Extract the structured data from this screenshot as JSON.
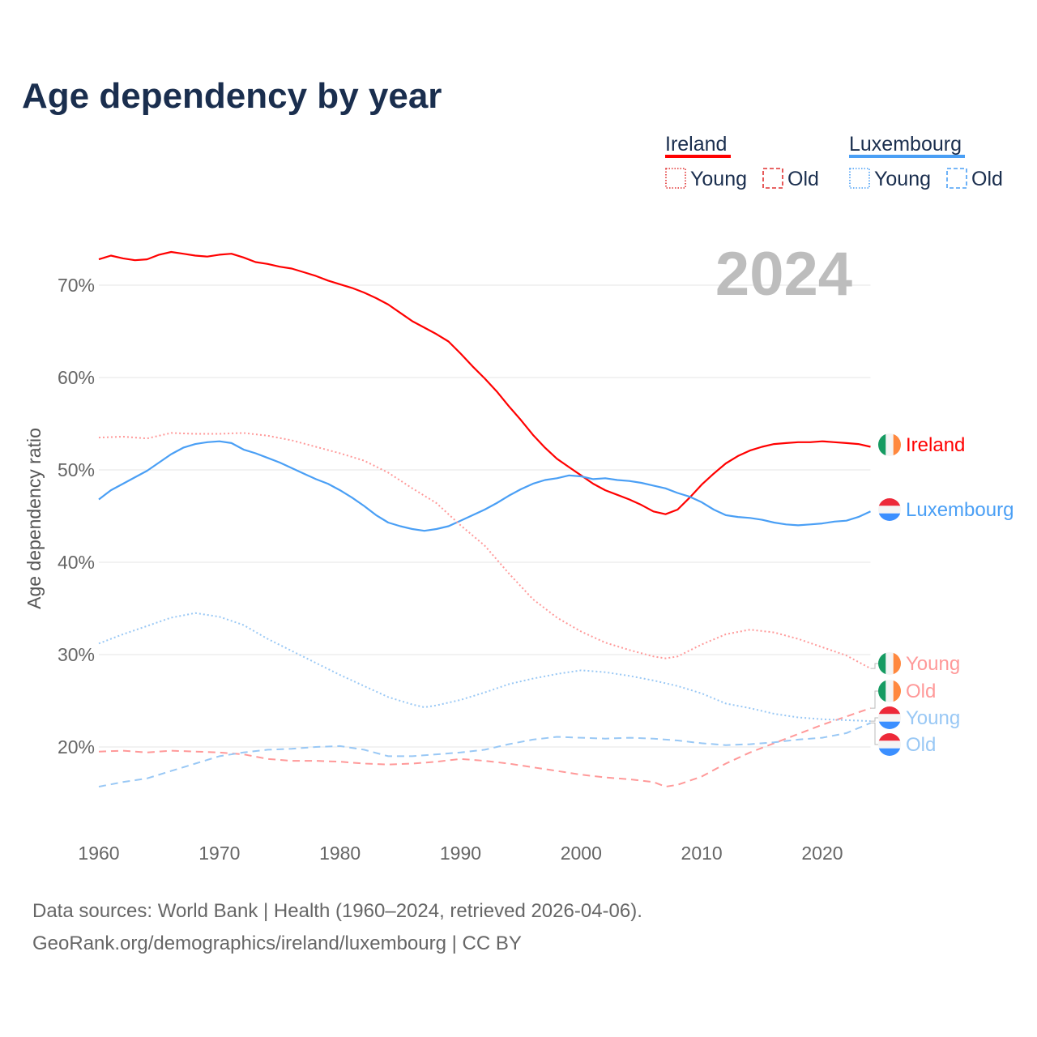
{
  "chart_data": {
    "type": "line",
    "title": "Age dependency by year",
    "ylabel": "Age dependency ratio",
    "xlabel": "",
    "xlim": [
      1960,
      2024
    ],
    "ylim": [
      12,
      76
    ],
    "grid": true,
    "current_year": "2024",
    "x_ticks": [
      "1960",
      "1970",
      "1980",
      "1990",
      "2000",
      "2010",
      "2020"
    ],
    "y_ticks": [
      {
        "value": 20,
        "label": "20%"
      },
      {
        "value": 30,
        "label": "30%"
      },
      {
        "value": 40,
        "label": "40%"
      },
      {
        "value": 50,
        "label": "50%"
      },
      {
        "value": 60,
        "label": "60%"
      },
      {
        "value": 70,
        "label": "70%"
      }
    ],
    "legend": {
      "placement": "top-right",
      "groups": [
        {
          "country": "Ireland",
          "color": "#ff0000",
          "items": [
            {
              "label": "Young",
              "style": "dotted",
              "color": "#e03030"
            },
            {
              "label": "Old",
              "style": "dashed",
              "color": "#e03030"
            }
          ]
        },
        {
          "country": "Luxembourg",
          "color": "#4a9ff5",
          "items": [
            {
              "label": "Young",
              "style": "dotted",
              "color": "#4a9ff5"
            },
            {
              "label": "Old",
              "style": "dashed",
              "color": "#4a9ff5"
            }
          ]
        }
      ]
    },
    "series": [
      {
        "name": "Ireland",
        "label": "Ireland",
        "style": "solid",
        "color": "#ff0000",
        "label_color": "#ff0000",
        "flag": "ireland",
        "x": [
          1960,
          1961,
          1962,
          1963,
          1964,
          1965,
          1966,
          1967,
          1968,
          1969,
          1970,
          1971,
          1972,
          1973,
          1974,
          1975,
          1976,
          1977,
          1978,
          1979,
          1980,
          1981,
          1982,
          1983,
          1984,
          1985,
          1986,
          1987,
          1988,
          1989,
          1990,
          1991,
          1992,
          1993,
          1994,
          1995,
          1996,
          1997,
          1998,
          1999,
          2000,
          2001,
          2002,
          2003,
          2004,
          2005,
          2006,
          2007,
          2008,
          2009,
          2010,
          2011,
          2012,
          2013,
          2014,
          2015,
          2016,
          2017,
          2018,
          2019,
          2020,
          2021,
          2022,
          2023,
          2024
        ],
        "values": [
          72.8,
          73.2,
          72.9,
          72.7,
          72.8,
          73.3,
          73.6,
          73.4,
          73.2,
          73.1,
          73.3,
          73.4,
          73.0,
          72.5,
          72.3,
          72.0,
          71.8,
          71.4,
          71.0,
          70.5,
          70.1,
          69.7,
          69.2,
          68.6,
          67.9,
          67.0,
          66.1,
          65.4,
          64.7,
          63.9,
          62.6,
          61.2,
          59.9,
          58.5,
          56.9,
          55.4,
          53.8,
          52.4,
          51.2,
          50.3,
          49.4,
          48.5,
          47.8,
          47.3,
          46.8,
          46.2,
          45.5,
          45.2,
          45.7,
          47.0,
          48.4,
          49.6,
          50.7,
          51.5,
          52.1,
          52.5,
          52.8,
          52.9,
          53.0,
          53.0,
          53.1,
          53.0,
          52.9,
          52.8,
          52.5
        ]
      },
      {
        "name": "Luxembourg",
        "label": "Luxembourg",
        "style": "solid",
        "color": "#4a9ff5",
        "label_color": "#4a9ff5",
        "flag": "luxembourg",
        "x": [
          1960,
          1961,
          1962,
          1963,
          1964,
          1965,
          1966,
          1967,
          1968,
          1969,
          1970,
          1971,
          1972,
          1973,
          1974,
          1975,
          1976,
          1977,
          1978,
          1979,
          1980,
          1981,
          1982,
          1983,
          1984,
          1985,
          1986,
          1987,
          1988,
          1989,
          1990,
          1991,
          1992,
          1993,
          1994,
          1995,
          1996,
          1997,
          1998,
          1999,
          2000,
          2001,
          2002,
          2003,
          2004,
          2005,
          2006,
          2007,
          2008,
          2009,
          2010,
          2011,
          2012,
          2013,
          2014,
          2015,
          2016,
          2017,
          2018,
          2019,
          2020,
          2021,
          2022,
          2023,
          2024
        ],
        "values": [
          46.8,
          47.8,
          48.5,
          49.2,
          49.9,
          50.8,
          51.7,
          52.4,
          52.8,
          53.0,
          53.1,
          52.9,
          52.2,
          51.8,
          51.3,
          50.8,
          50.2,
          49.6,
          49.0,
          48.5,
          47.8,
          47.0,
          46.1,
          45.1,
          44.3,
          43.9,
          43.6,
          43.4,
          43.6,
          43.9,
          44.5,
          45.1,
          45.7,
          46.4,
          47.2,
          47.9,
          48.5,
          48.9,
          49.1,
          49.4,
          49.3,
          49.0,
          49.1,
          48.9,
          48.8,
          48.6,
          48.3,
          48.0,
          47.5,
          47.1,
          46.5,
          45.7,
          45.1,
          44.9,
          44.8,
          44.6,
          44.3,
          44.1,
          44.0,
          44.1,
          44.2,
          44.4,
          44.5,
          44.9,
          45.5
        ]
      },
      {
        "name": "Ireland Young",
        "label": "Young",
        "style": "dotted",
        "color": "#ff9999",
        "label_color": "#ff9999",
        "flag": "ireland",
        "x": [
          1960,
          1962,
          1964,
          1966,
          1968,
          1970,
          1972,
          1974,
          1976,
          1978,
          1980,
          1982,
          1984,
          1986,
          1988,
          1990,
          1992,
          1994,
          1996,
          1998,
          2000,
          2002,
          2004,
          2006,
          2007,
          2008,
          2010,
          2012,
          2014,
          2016,
          2018,
          2020,
          2022,
          2024
        ],
        "values": [
          53.5,
          53.6,
          53.4,
          54.0,
          53.9,
          53.9,
          54.0,
          53.7,
          53.2,
          52.5,
          51.8,
          51.0,
          49.7,
          48.0,
          46.4,
          44.0,
          41.8,
          38.8,
          36.0,
          34.0,
          32.5,
          31.3,
          30.5,
          29.8,
          29.6,
          29.8,
          31.1,
          32.2,
          32.7,
          32.4,
          31.7,
          30.8,
          29.9,
          28.5
        ]
      },
      {
        "name": "Ireland Old",
        "label": "Old",
        "style": "dashed",
        "color": "#ff9999",
        "label_color": "#ff9999",
        "flag": "ireland",
        "x": [
          1960,
          1962,
          1964,
          1966,
          1968,
          1970,
          1972,
          1974,
          1976,
          1978,
          1980,
          1982,
          1984,
          1986,
          1988,
          1990,
          1992,
          1994,
          1996,
          1998,
          2000,
          2002,
          2004,
          2006,
          2007,
          2008,
          2010,
          2012,
          2014,
          2016,
          2018,
          2020,
          2022,
          2024
        ],
        "values": [
          19.5,
          19.6,
          19.4,
          19.6,
          19.5,
          19.4,
          19.2,
          18.7,
          18.5,
          18.5,
          18.4,
          18.2,
          18.1,
          18.2,
          18.4,
          18.7,
          18.5,
          18.2,
          17.8,
          17.4,
          17.0,
          16.7,
          16.5,
          16.2,
          15.7,
          15.9,
          16.8,
          18.2,
          19.4,
          20.4,
          21.4,
          22.4,
          23.3,
          24.2
        ]
      },
      {
        "name": "Luxembourg Young",
        "label": "Young",
        "style": "dotted",
        "color": "#99c8f5",
        "label_color": "#99c8f5",
        "flag": "luxembourg",
        "x": [
          1960,
          1962,
          1964,
          1966,
          1968,
          1970,
          1972,
          1974,
          1976,
          1978,
          1980,
          1982,
          1984,
          1986,
          1987,
          1988,
          1990,
          1992,
          1994,
          1996,
          1998,
          2000,
          2002,
          2004,
          2006,
          2008,
          2010,
          2012,
          2014,
          2016,
          2018,
          2020,
          2022,
          2024
        ],
        "values": [
          31.2,
          32.2,
          33.1,
          34.0,
          34.5,
          34.1,
          33.2,
          31.7,
          30.4,
          29.1,
          27.8,
          26.6,
          25.4,
          24.6,
          24.3,
          24.5,
          25.1,
          25.9,
          26.8,
          27.4,
          27.9,
          28.3,
          28.1,
          27.7,
          27.2,
          26.6,
          25.8,
          24.7,
          24.2,
          23.6,
          23.2,
          23.0,
          22.9,
          22.8
        ]
      },
      {
        "name": "Luxembourg Old",
        "label": "Old",
        "style": "dashed",
        "color": "#99c8f5",
        "label_color": "#99c8f5",
        "flag": "luxembourg",
        "x": [
          1960,
          1962,
          1964,
          1966,
          1968,
          1970,
          1972,
          1974,
          1976,
          1978,
          1980,
          1982,
          1984,
          1986,
          1988,
          1990,
          1992,
          1994,
          1996,
          1998,
          2000,
          2002,
          2004,
          2006,
          2008,
          2010,
          2012,
          2014,
          2016,
          2018,
          2020,
          2022,
          2024
        ],
        "values": [
          15.7,
          16.2,
          16.6,
          17.4,
          18.2,
          19.0,
          19.4,
          19.7,
          19.8,
          20.0,
          20.1,
          19.7,
          19.0,
          19.0,
          19.2,
          19.4,
          19.7,
          20.3,
          20.8,
          21.1,
          21.0,
          20.9,
          21.0,
          20.9,
          20.7,
          20.4,
          20.2,
          20.3,
          20.5,
          20.8,
          21.0,
          21.5,
          22.6
        ]
      }
    ]
  },
  "footer": {
    "line1": "Data sources: World Bank | Health (1960–2024, retrieved 2026-04-06).",
    "line2": "GeoRank.org/demographics/ireland/luxembourg | CC BY"
  }
}
